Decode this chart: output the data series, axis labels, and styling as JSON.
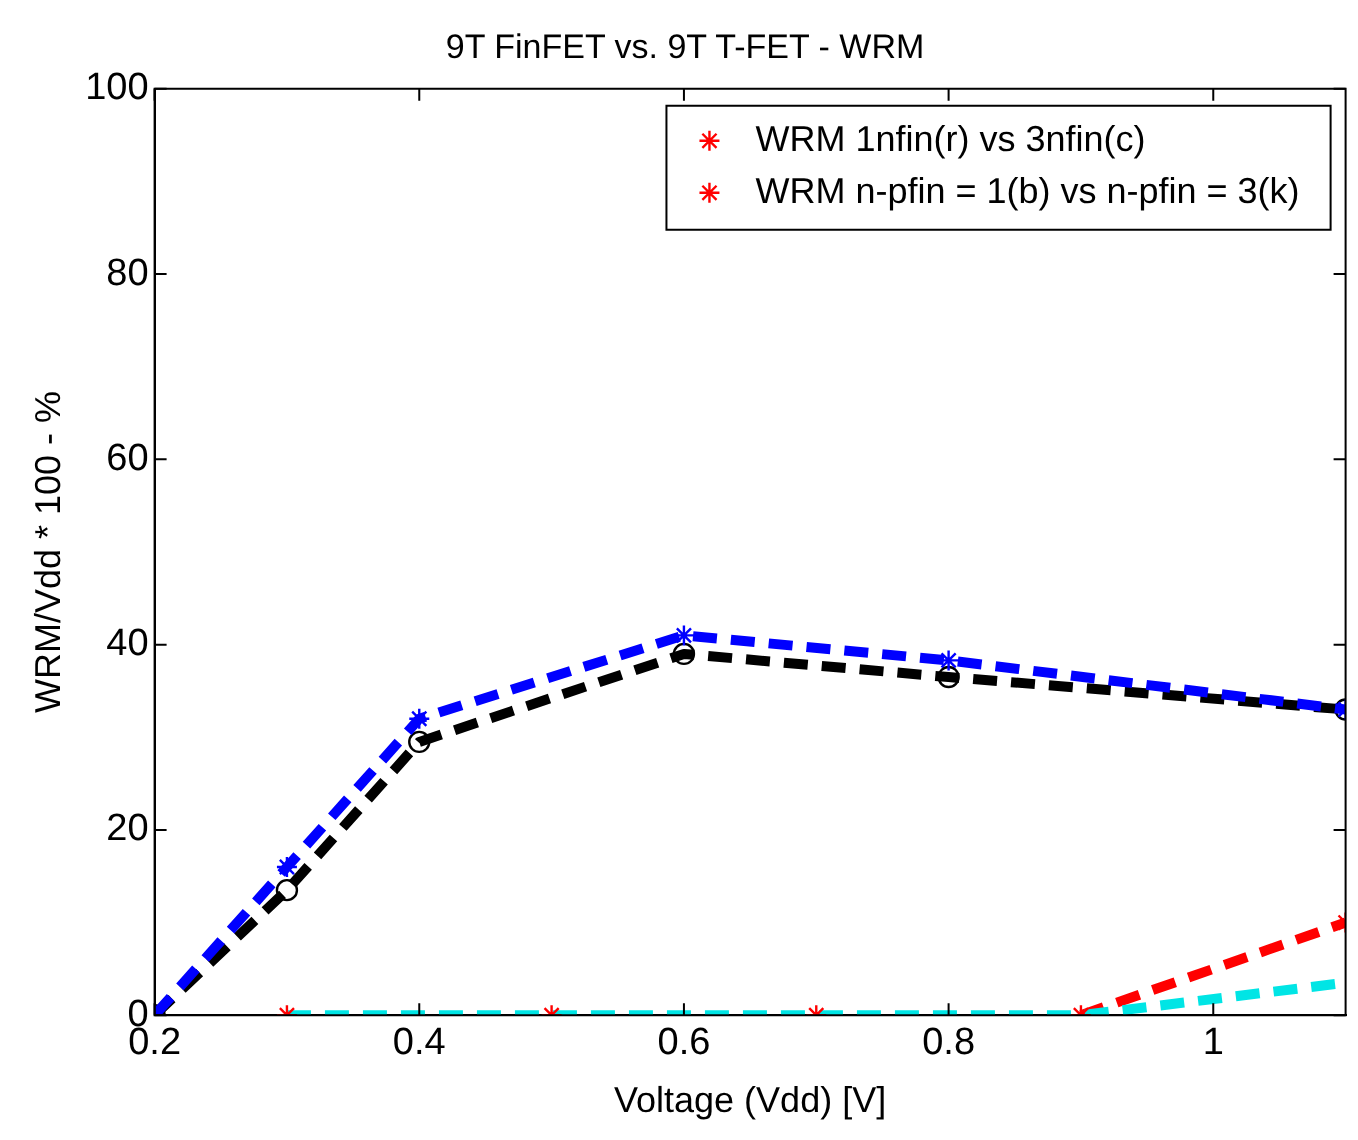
{
  "chart_data": {
    "type": "line",
    "title": "9T FinFET vs. 9T T-FET - WRM",
    "xlabel": "Voltage (Vdd) [V]",
    "ylabel": "WRM/Vdd * 100 - %",
    "xlim": [
      0.2,
      1.1
    ],
    "xticks": [
      0.2,
      0.4,
      0.6,
      0.8,
      1
    ],
    "ylim": [
      0,
      100
    ],
    "yticks": [
      0,
      20,
      40,
      60,
      80,
      100
    ],
    "grid": false,
    "legend": "top right",
    "line_style": "dashed",
    "series": [
      {
        "color": "#000000",
        "marker": "circle",
        "x": [
          0.2,
          0.3,
          0.4,
          0.6,
          0.8,
          1.1
        ],
        "values": [
          0,
          13.5,
          29.5,
          39,
          36.5,
          33
        ]
      },
      {
        "color": "#0000ff",
        "marker": "cross",
        "x": [
          0.2,
          0.3,
          0.4,
          0.6,
          0.8,
          1.1
        ],
        "values": [
          0,
          16,
          32,
          41,
          38.3,
          33
        ]
      },
      {
        "color": "#ff0000",
        "marker": "none",
        "x": [
          0.9,
          1.1
        ],
        "values": [
          0,
          10
        ]
      },
      {
        "color": "#00e5e5",
        "marker": "none",
        "x": [
          0.3,
          0.5,
          0.7,
          0.9,
          1.1
        ],
        "values": [
          0,
          0,
          0,
          0,
          3.5
        ]
      },
      {
        "type": "scatter",
        "name": "WRM 1nfin(r) vs 3nfin(c)",
        "color": "#ff0000",
        "marker": "cross",
        "x": [
          0.3,
          0.5,
          0.7,
          0.9
        ],
        "values": [
          0,
          0,
          0,
          0
        ]
      },
      {
        "type": "scatter",
        "name": "WRM n-pfin = 1(b) vs n-pfin = 3(k)",
        "color": "#ff0000",
        "marker": "cross",
        "x": [
          1.1
        ],
        "values": [
          10
        ]
      }
    ]
  }
}
